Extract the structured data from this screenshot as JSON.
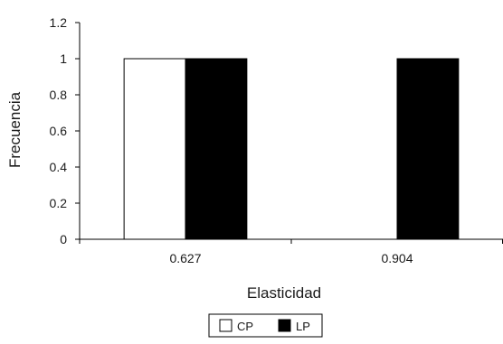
{
  "chart_data": {
    "type": "bar",
    "categories": [
      "0.627",
      "0.904"
    ],
    "series": [
      {
        "name": "CP",
        "values": [
          1,
          0
        ],
        "color": "#ffffff"
      },
      {
        "name": "LP",
        "values": [
          1,
          1
        ],
        "color": "#000000"
      }
    ],
    "title": "",
    "xlabel": "Elasticidad",
    "ylabel": "Frecuencia",
    "ylim": [
      0,
      1.2
    ],
    "yticks": [
      "0",
      "0.2",
      "0.4",
      "0.6",
      "0.8",
      "1",
      "1.2"
    ],
    "grid": false,
    "legend_position": "bottom-center"
  }
}
